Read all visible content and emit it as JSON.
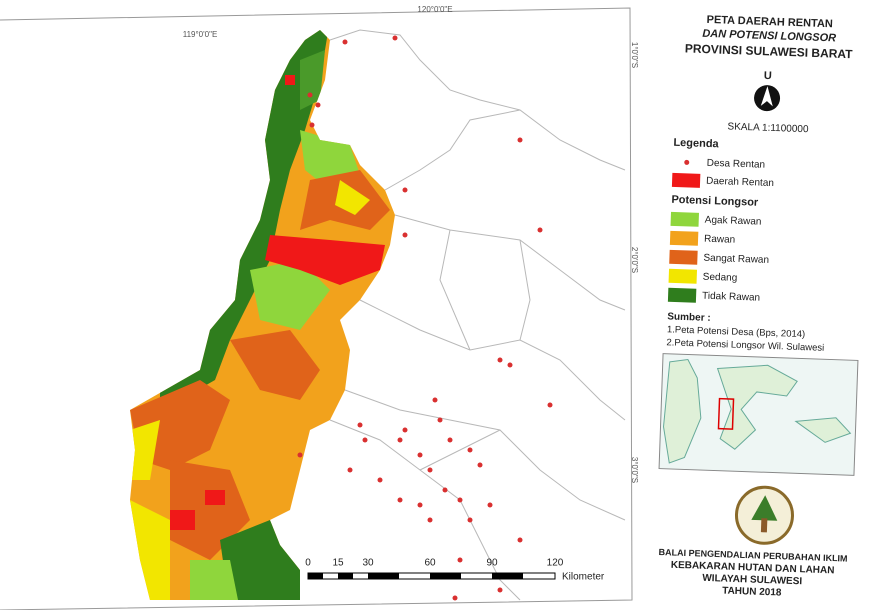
{
  "map": {
    "coordinates": {
      "longitude": [
        "119°0'0\"E",
        "120°0'0\"E"
      ],
      "latitude": [
        "1°0'0\"S",
        "2°0'0\"S",
        "3°0'0\"S"
      ]
    },
    "scale_bar": {
      "labels": [
        "0",
        "15",
        "30",
        "60",
        "90",
        "120"
      ],
      "unit": "Kilometer"
    }
  },
  "legend_panel": {
    "title": [
      "PETA DAERAH RENTAN",
      "DAN POTENSI LONGSOR",
      "PROVINSI SULAWESI BARAT"
    ],
    "north": "U",
    "scale": "SKALA   1:1100000",
    "legend_title": "Legenda",
    "village_marker": {
      "label": "Desa Rentan",
      "color": "#d93030"
    },
    "vulnerable_area": {
      "label": "Daerah Rentan",
      "color": "#f01818"
    },
    "potential_title": "Potensi Longsor",
    "potential_items": [
      {
        "label": "Agak Rawan",
        "color": "#8fd63c"
      },
      {
        "label": "Rawan",
        "color": "#f2a21c"
      },
      {
        "label": "Sangat Rawan",
        "color": "#e0631a"
      },
      {
        "label": "Sedang",
        "color": "#f2e600"
      },
      {
        "label": "Tidak Rawan",
        "color": "#2f7d1d"
      }
    ],
    "source_title": "Sumber :",
    "sources": [
      "1.Peta Potensi Desa (Bps, 2014)",
      "2.Peta Potensi Longsor Wil. Sulawesi"
    ]
  },
  "footer": {
    "lines": [
      "BALAI PENGENDALIAN PERUBAHAN IKLIM",
      "KEBAKARAN HUTAN DAN LAHAN",
      "WILAYAH SULAWESI",
      "TAHUN 2018"
    ]
  }
}
